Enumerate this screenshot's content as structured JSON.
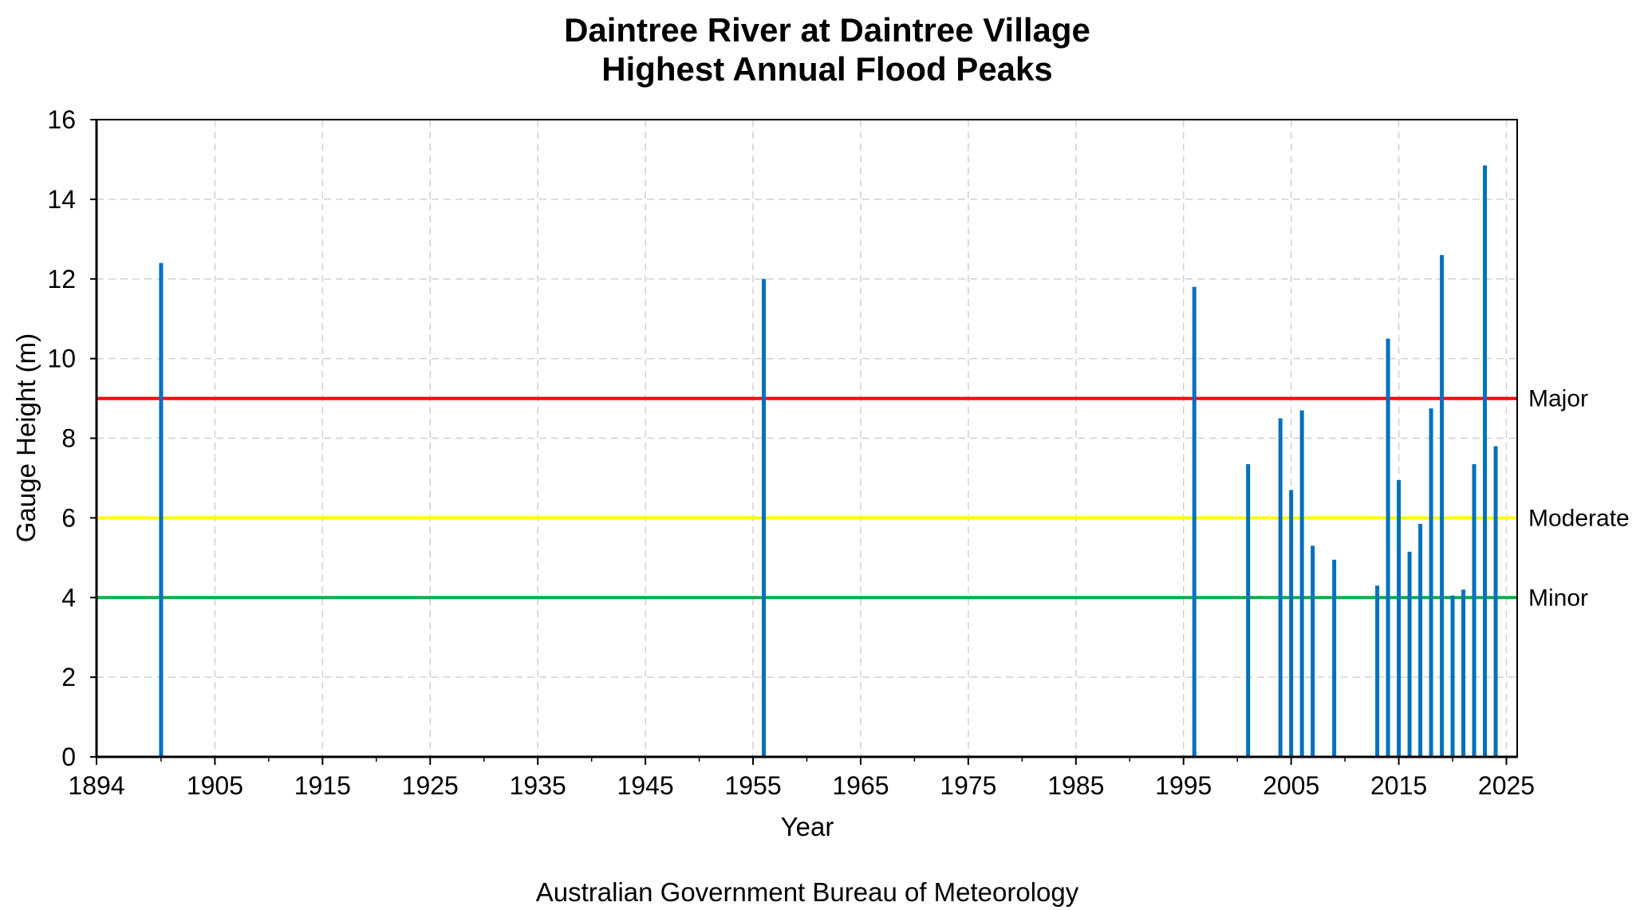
{
  "chart_data": {
    "type": "bar",
    "title": "Daintree River at Daintree Village",
    "subtitle": "Highest Annual Flood Peaks",
    "xlabel": "Year",
    "ylabel": "Gauge Height (m)",
    "xlim": [
      1894,
      2026
    ],
    "ylim": [
      0,
      16
    ],
    "x_ticks": [
      1894,
      1905,
      1915,
      1925,
      1935,
      1945,
      1955,
      1965,
      1975,
      1985,
      1995,
      2005,
      2015,
      2025
    ],
    "y_ticks": [
      0,
      2,
      4,
      6,
      8,
      10,
      12,
      14,
      16
    ],
    "grid": true,
    "bar_color": "#0070C0",
    "series": [
      {
        "x": [
          1900,
          1956,
          1996,
          2001,
          2004,
          2005,
          2006,
          2007,
          2009,
          2013,
          2014,
          2015,
          2016,
          2017,
          2018,
          2019,
          2020,
          2021,
          2022,
          2023,
          2024
        ],
        "values": [
          12.4,
          12.0,
          11.8,
          7.35,
          8.5,
          6.7,
          8.7,
          5.3,
          4.95,
          4.3,
          10.5,
          6.95,
          5.15,
          5.85,
          8.75,
          12.6,
          4.05,
          4.2,
          7.35,
          14.85,
          7.8
        ]
      }
    ],
    "thresholds": [
      {
        "label": "Major",
        "value": 9,
        "color": "#FF0000"
      },
      {
        "label": "Moderate",
        "value": 6,
        "color": "#FFFF00"
      },
      {
        "label": "Minor",
        "value": 4,
        "color": "#00B050"
      }
    ]
  },
  "footer": {
    "credit": "Australian Government Bureau of Meteorology"
  }
}
